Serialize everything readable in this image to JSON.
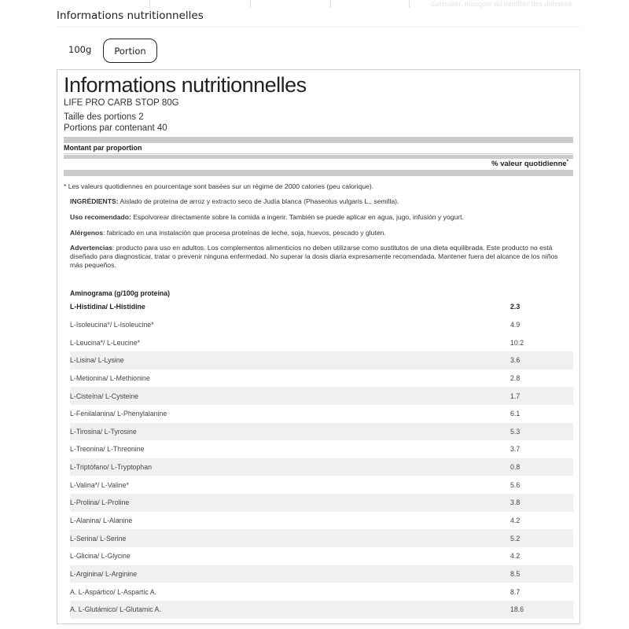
{
  "top_faint_text": "Consulter, masquer ou modifier des données",
  "section_heading": "Informations nutritionnelles",
  "tabs": [
    {
      "label": "100g",
      "selected": false
    },
    {
      "label": "Portion",
      "selected": true
    }
  ],
  "label": {
    "title": "Informations nutritionnelles",
    "product": "LIFE PRO CARB STOP 80G",
    "serving_size": "Taille des portions 2",
    "servings_per_container": "Portions par contenant 40",
    "amount_per": "Montant par proportion",
    "daily_value": "% valeur quotidienne",
    "daily_value_mark": "*",
    "footnote": "* Les valeurs quotidiennes en pourcentage sont basées sur un régime de 2000 calories (peu calorique).",
    "ingredients_label": "INGRÉDIENTS:",
    "ingredients": " Aislado de proteína de arroz y extracto seco de Judía blanca (Phaseolus vulgaris L., semilla).",
    "usage_label": "Uso recomendado:",
    "usage": " Espolvorear directamente sobre la comida a ingerir. También se puede aplicar en agua, jugo, infusión y yogurt.",
    "allergens_label": "Alérgenos",
    "allergens": ": fabricado en una instalación que procesa proteínas de leche, soja, huevos, pescado y gluten.",
    "warnings_label": "Advertencias",
    "warnings": ": producto para uso en adultos. Los complementos alimenticios no deben utilizarse como sustitutos de una dieta equilibrada. Este producto no está diseñado para diagnosticar, tratar o prevenir ninguna enfermedad. No superar la dosis diaria expresamente recomendada. Mantener fuera del alcance de los niños más pequeños.",
    "aminogram_heading": "Aminograma (g/100g proteína)",
    "aminogram": [
      {
        "name": "L-Histidina/ L-Histidine",
        "value": "2.3"
      },
      {
        "name": "L-Isoleucina*/ L-Isoleucine*",
        "value": "4.9"
      },
      {
        "name": "L-Leucina*/ L-Leucine*",
        "value": "10.2"
      },
      {
        "name": "L-Lisina/ L-Lysine",
        "value": "3.6"
      },
      {
        "name": "L-Metionina/ L-Methionine",
        "value": "2.8"
      },
      {
        "name": "L-Cisteína/ L-Cysteine",
        "value": "1.7"
      },
      {
        "name": "L-Fenilalanina/ L-Phenylalanine",
        "value": "6.1"
      },
      {
        "name": "L-Tirosina/ L-Tyrosine",
        "value": "5.3"
      },
      {
        "name": "L-Treonina/ L-Threonine",
        "value": "3.7"
      },
      {
        "name": "L-Triptófano/ L-Tryptophan",
        "value": "0.8"
      },
      {
        "name": "L-Valina*/ L-Valine*",
        "value": "5.6"
      },
      {
        "name": "L-Prolina/ L-Proline",
        "value": "3.8"
      },
      {
        "name": "L-Alanina/ L-Alanine",
        "value": "4.2"
      },
      {
        "name": "L-Serina/ L-Serine",
        "value": "5.2"
      },
      {
        "name": "L-Glicina/ L-Glycine",
        "value": "4.2"
      },
      {
        "name": "L-Arginina/ L-Arginine",
        "value": "8.5"
      },
      {
        "name": "A. L-Aspártico/ L-Aspartic A.",
        "value": "8.7"
      },
      {
        "name": "A. L-Glutámico/ L-Glutamic A.",
        "value": "18.6"
      }
    ]
  }
}
